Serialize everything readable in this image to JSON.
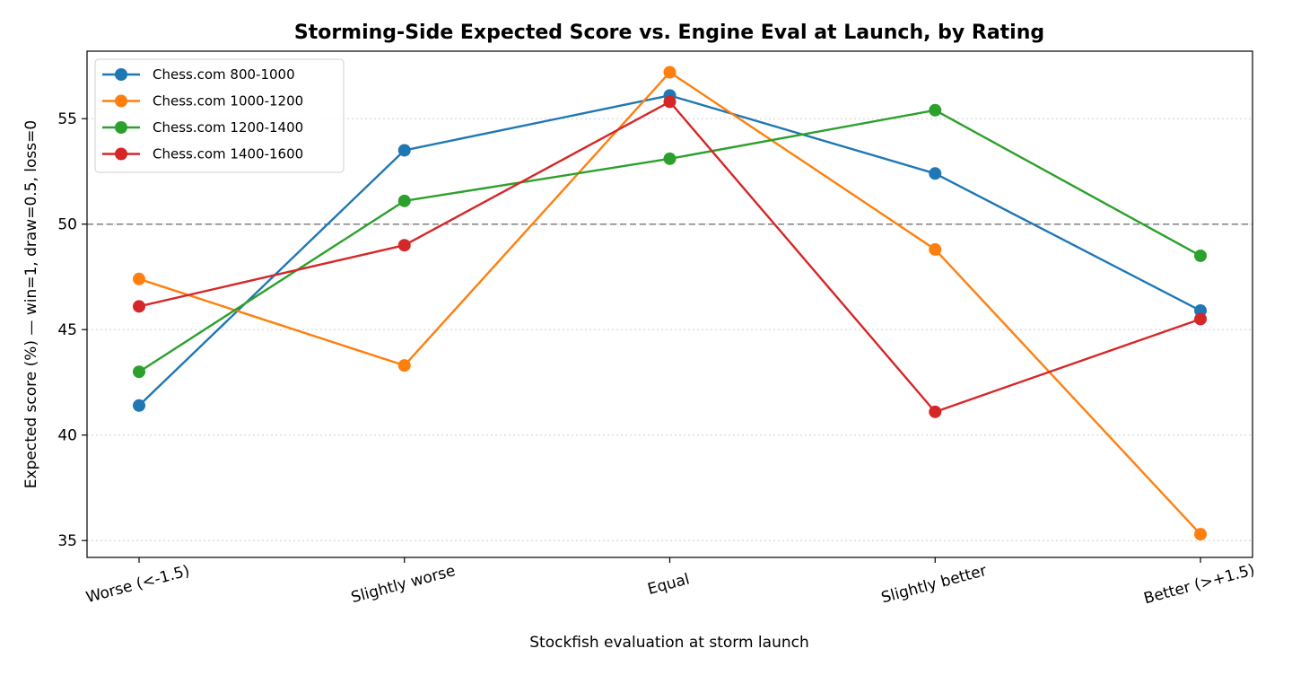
{
  "chart_data": {
    "type": "line",
    "title": "Storming-Side Expected Score vs. Engine Eval at Launch, by Rating",
    "xlabel": "Stockfish evaluation at storm launch",
    "ylabel": "Expected score (%)   —   win=1, draw=0.5, loss=0",
    "categories": [
      "Worse (<-1.5)",
      "Slightly worse",
      "Equal",
      "Slightly better",
      "Better (>+1.5)"
    ],
    "ylim": [
      34.2,
      58.2
    ],
    "yticks": [
      35,
      40,
      45,
      50,
      55
    ],
    "reference_line": 50,
    "grid": "horizontal dotted",
    "legend_position": "top-left",
    "series": [
      {
        "name": "Chess.com 800-1000",
        "color": "#1f77b4",
        "values": [
          41.4,
          53.5,
          56.1,
          52.4,
          45.9
        ]
      },
      {
        "name": "Chess.com 1000-1200",
        "color": "#ff7f0e",
        "values": [
          47.4,
          43.3,
          57.2,
          48.8,
          35.3
        ]
      },
      {
        "name": "Chess.com 1200-1400",
        "color": "#2ca02c",
        "values": [
          43.0,
          51.1,
          53.1,
          55.4,
          48.5
        ]
      },
      {
        "name": "Chess.com 1400-1600",
        "color": "#d62728",
        "values": [
          46.1,
          49.0,
          55.8,
          41.1,
          45.5
        ]
      }
    ]
  }
}
